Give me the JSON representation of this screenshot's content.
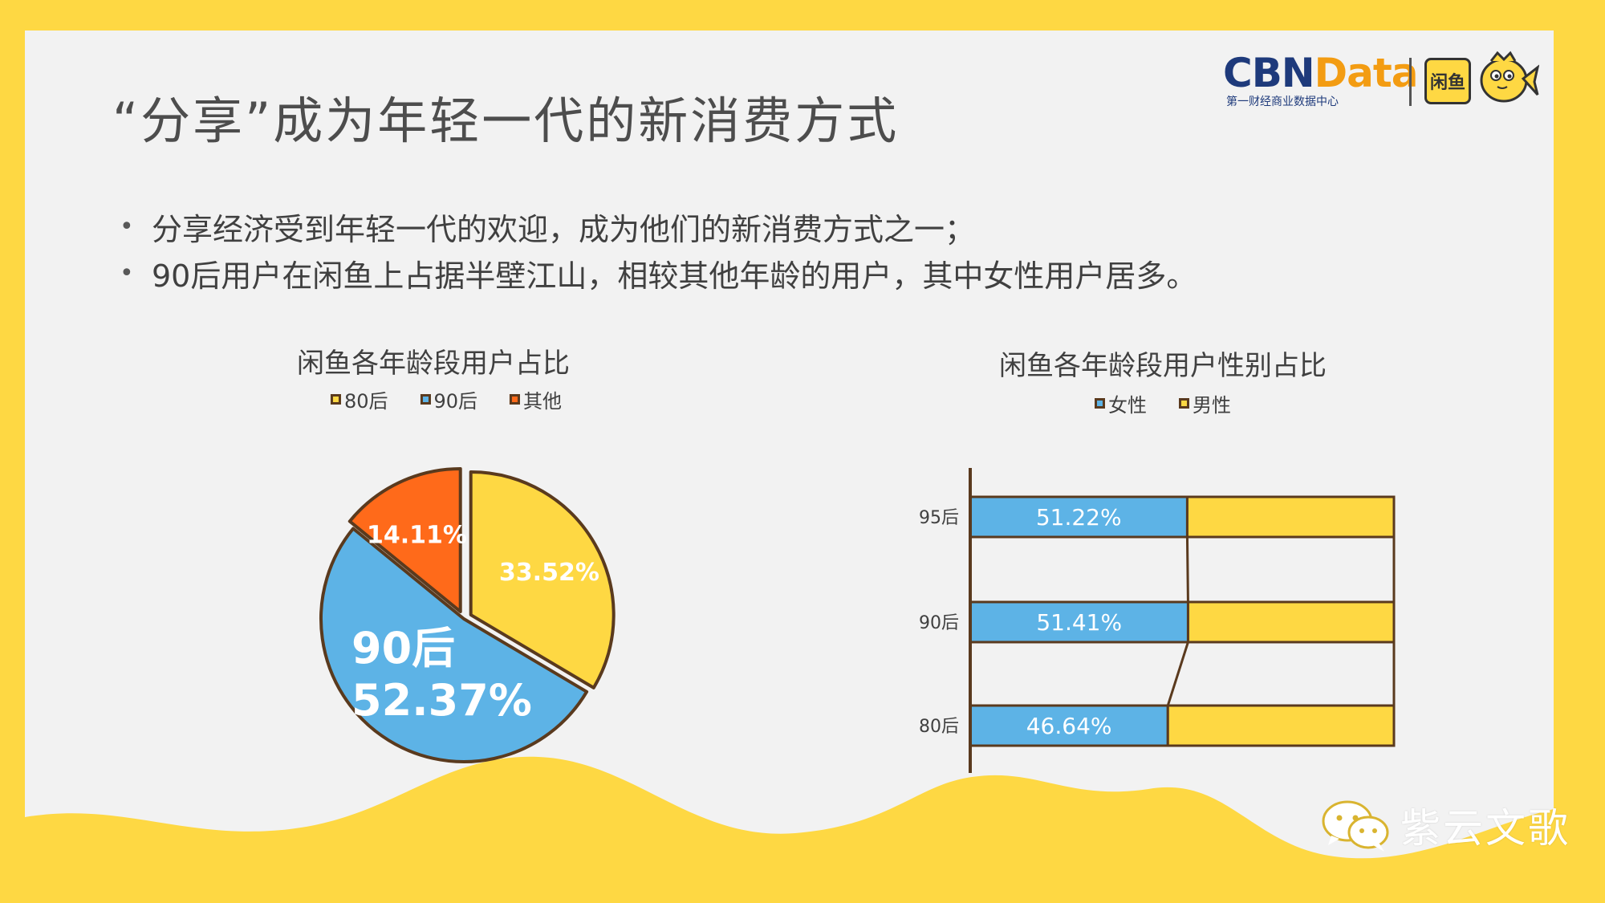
{
  "header": {
    "title": "“分享”成为年轻一代的新消费方式",
    "logo_brand_main": "CBN",
    "logo_brand_accent": "Data",
    "logo_subtitle": "第一财经商业数据中心",
    "partner_logo_text": "闲鱼"
  },
  "bullets": [
    "分享经济受到年轻一代的欢迎，成为他们的新消费方式之一；",
    "90后用户在闲鱼上占据半壁江山，相较其他年龄的用户，其中女性用户居多。"
  ],
  "colors": {
    "yellow": "#FED843",
    "blue": "#5DB3E6",
    "orange": "#FF6A1A",
    "outline": "#5A3A1E",
    "panel": "#F2F2F2"
  },
  "watermark": {
    "text": "紫云文歌",
    "icon": "wechat-icon"
  },
  "chart_data": [
    {
      "type": "pie",
      "title": "闲鱼各年龄段用户占比",
      "legend": [
        "80后",
        "90后",
        "其他"
      ],
      "legend_placement": "top",
      "slices": [
        {
          "label": "80后",
          "value": 33.52,
          "display": "33.52%",
          "color": "#FED843"
        },
        {
          "label": "90后",
          "value": 52.37,
          "display": "52.37%",
          "color": "#5DB3E6"
        },
        {
          "label": "其他",
          "value": 14.11,
          "display": "14.11%",
          "color": "#FF6A1A"
        }
      ]
    },
    {
      "type": "bar",
      "orientation": "horizontal",
      "stacked": "100%",
      "title": "闲鱼各年龄段用户性别占比",
      "legend": [
        "女性",
        "男性"
      ],
      "legend_placement": "top",
      "categories": [
        "95后",
        "90后",
        "80后"
      ],
      "series": [
        {
          "name": "女性",
          "values": [
            51.22,
            51.41,
            46.64
          ],
          "labels": [
            "51.22%",
            "51.41%",
            "46.64%"
          ],
          "color": "#5DB3E6"
        },
        {
          "name": "男性",
          "values": [
            48.78,
            48.59,
            53.36
          ],
          "color": "#FED843"
        }
      ],
      "xlim": [
        0,
        100
      ],
      "series_lines": true
    }
  ]
}
